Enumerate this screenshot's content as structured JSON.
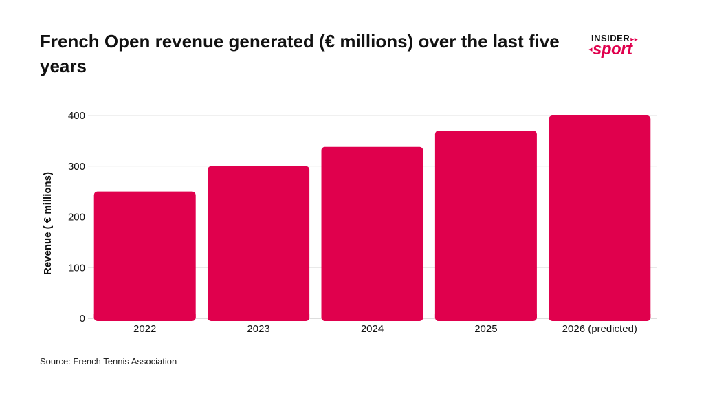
{
  "header": {
    "title": "French Open revenue generated (€ millions) over the last five years"
  },
  "logo": {
    "top_text": "INSIDER",
    "top_arrows": "▸▸",
    "bottom_arrow": "◂",
    "bottom_text": "sport"
  },
  "footer": {
    "source": "Source: French Tennis Association"
  },
  "chart_data": {
    "type": "bar",
    "categories": [
      "2022",
      "2023",
      "2024",
      "2025",
      "2026 (predicted)"
    ],
    "values": [
      250,
      300,
      338,
      370,
      400
    ],
    "xlabel": "",
    "ylabel": "Revenue ( € millions)",
    "ylim": [
      0,
      400
    ],
    "yticks": [
      0,
      100,
      200,
      300,
      400
    ],
    "grid": true,
    "bar_color": "#e0004d",
    "legend": "none"
  }
}
